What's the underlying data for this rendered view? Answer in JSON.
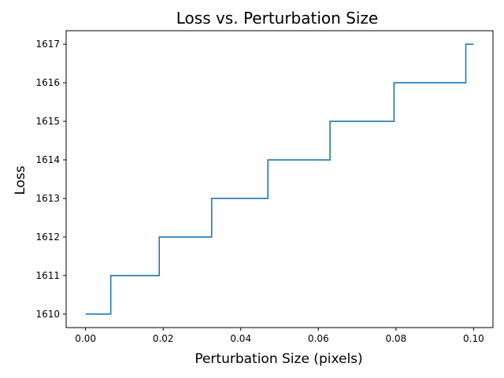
{
  "chart_data": {
    "type": "line",
    "title": "Loss vs. Perturbation Size",
    "xlabel": "Perturbation Size (pixels)",
    "ylabel": "Loss",
    "xlim": [
      -0.005,
      0.105
    ],
    "ylim": [
      1609.65,
      1617.35
    ],
    "x_ticks": [
      0.0,
      0.02,
      0.04,
      0.06,
      0.08,
      0.1
    ],
    "x_tick_labels": [
      "0.00",
      "0.02",
      "0.04",
      "0.06",
      "0.08",
      "0.10"
    ],
    "y_ticks": [
      1610,
      1611,
      1612,
      1613,
      1614,
      1615,
      1616,
      1617
    ],
    "y_tick_labels": [
      "1610",
      "1611",
      "1612",
      "1613",
      "1614",
      "1615",
      "1616",
      "1617"
    ],
    "grid": false,
    "line_color": "#1f77b4",
    "series": [
      {
        "x": [
          0.0,
          0.0065,
          0.0065,
          0.019,
          0.019,
          0.0325,
          0.0325,
          0.047,
          0.047,
          0.063,
          0.063,
          0.0795,
          0.0795,
          0.098,
          0.098,
          0.1
        ],
        "y": [
          1610,
          1610,
          1611,
          1611,
          1612,
          1612,
          1613,
          1613,
          1614,
          1614,
          1615,
          1615,
          1616,
          1616,
          1617,
          1617
        ]
      }
    ]
  }
}
